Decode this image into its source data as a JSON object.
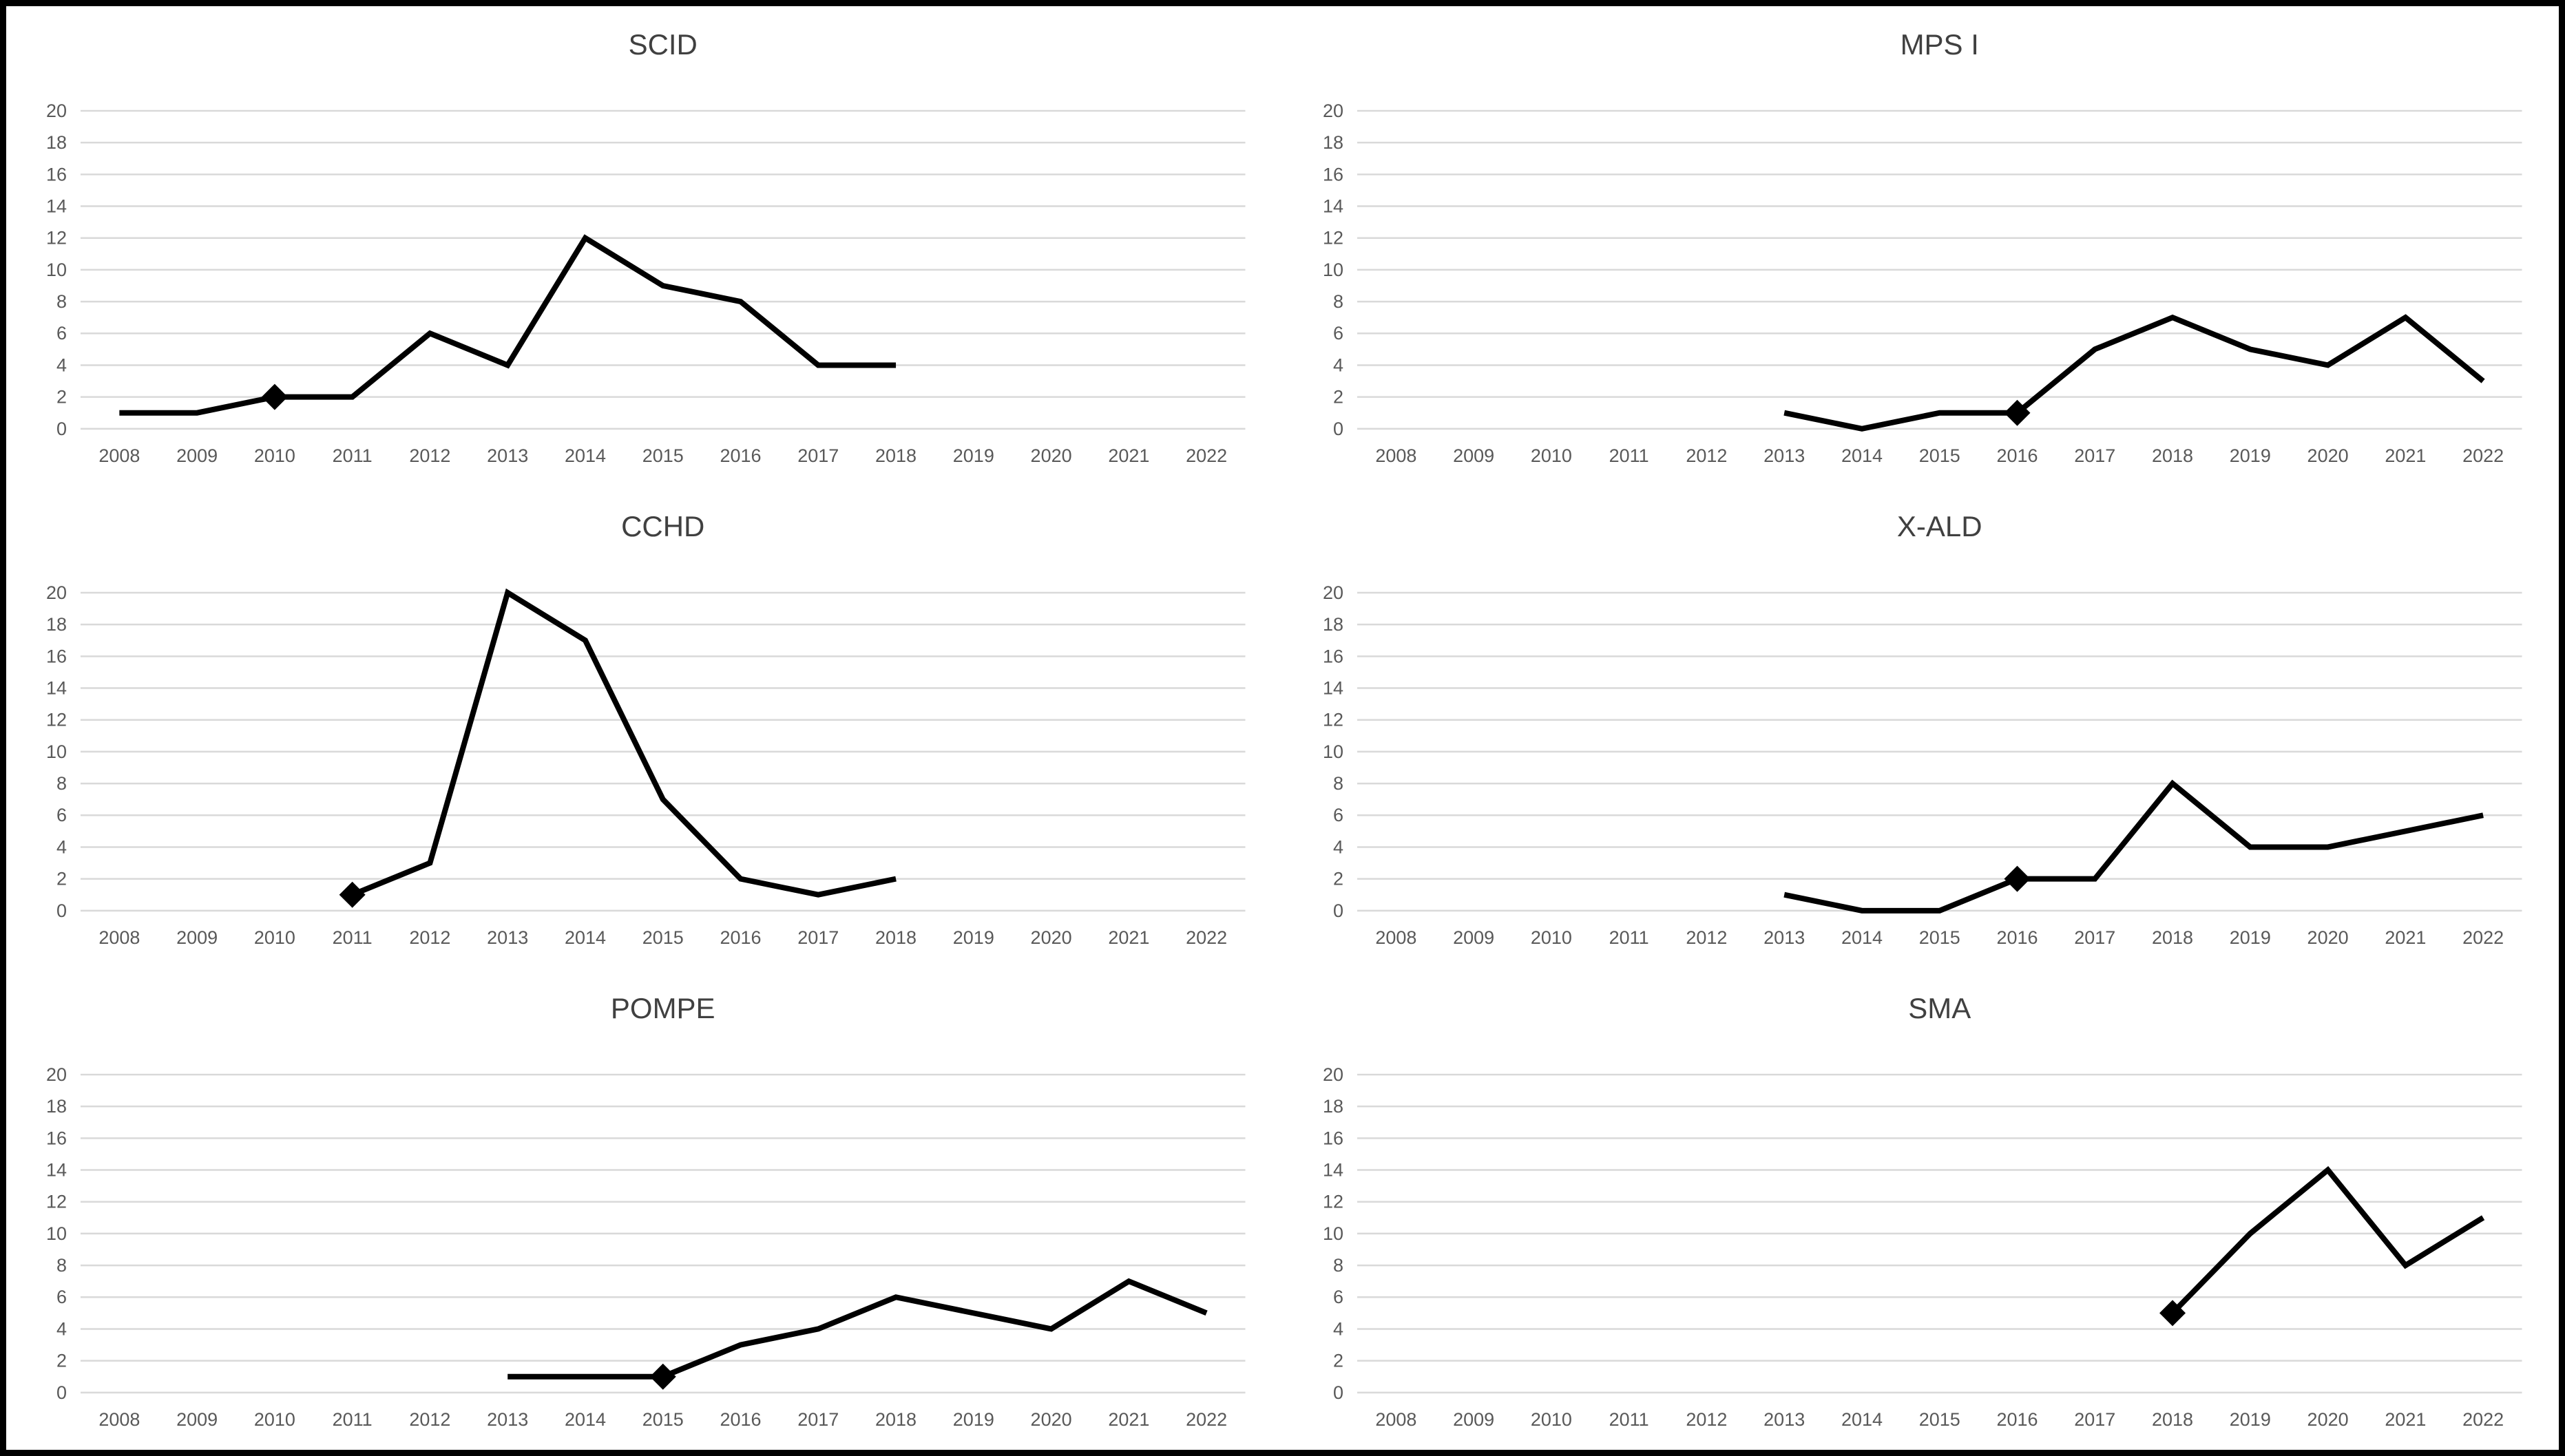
{
  "figure": {
    "layout": "2x3 grid of line charts",
    "colors": {
      "background": "#ffffff",
      "outer_border": "#000000",
      "title_text": "#404040",
      "axis_text": "#595959",
      "gridline": "#d9d9d9",
      "series_line": "#000000",
      "marker_fill": "#000000"
    }
  },
  "chart_data": [
    {
      "type": "line",
      "title": "SCID",
      "categories": [
        2008,
        2009,
        2010,
        2011,
        2012,
        2013,
        2014,
        2015,
        2016,
        2017,
        2018,
        2019,
        2020,
        2021,
        2022
      ],
      "values": [
        1,
        1,
        2,
        2,
        6,
        4,
        12,
        9,
        8,
        4,
        4,
        null,
        null,
        null,
        null
      ],
      "marker": {
        "category": 2010,
        "value": 2,
        "shape": "diamond"
      },
      "ylim": [
        0,
        20
      ],
      "ytick_step": 2,
      "grid": true,
      "legend": "none",
      "xlabel": "",
      "ylabel": ""
    },
    {
      "type": "line",
      "title": "MPS I",
      "categories": [
        2008,
        2009,
        2010,
        2011,
        2012,
        2013,
        2014,
        2015,
        2016,
        2017,
        2018,
        2019,
        2020,
        2021,
        2022
      ],
      "values": [
        null,
        null,
        null,
        null,
        null,
        1,
        0,
        1,
        1,
        5,
        7,
        5,
        4,
        7,
        3
      ],
      "marker": {
        "category": 2016,
        "value": 1,
        "shape": "diamond"
      },
      "ylim": [
        0,
        20
      ],
      "ytick_step": 2,
      "grid": true,
      "legend": "none",
      "xlabel": "",
      "ylabel": ""
    },
    {
      "type": "line",
      "title": "CCHD",
      "categories": [
        2008,
        2009,
        2010,
        2011,
        2012,
        2013,
        2014,
        2015,
        2016,
        2017,
        2018,
        2019,
        2020,
        2021,
        2022
      ],
      "values": [
        null,
        null,
        null,
        1,
        3,
        20,
        17,
        7,
        2,
        1,
        2,
        null,
        null,
        null,
        null
      ],
      "marker": {
        "category": 2011,
        "value": 1,
        "shape": "diamond"
      },
      "ylim": [
        0,
        20
      ],
      "ytick_step": 2,
      "grid": true,
      "legend": "none",
      "xlabel": "",
      "ylabel": ""
    },
    {
      "type": "line",
      "title": "X-ALD",
      "categories": [
        2008,
        2009,
        2010,
        2011,
        2012,
        2013,
        2014,
        2015,
        2016,
        2017,
        2018,
        2019,
        2020,
        2021,
        2022
      ],
      "values": [
        null,
        null,
        null,
        null,
        null,
        1,
        0,
        0,
        2,
        2,
        8,
        4,
        4,
        5,
        6
      ],
      "marker": {
        "category": 2016,
        "value": 2,
        "shape": "diamond"
      },
      "ylim": [
        0,
        20
      ],
      "ytick_step": 2,
      "grid": true,
      "legend": "none",
      "xlabel": "",
      "ylabel": ""
    },
    {
      "type": "line",
      "title": "POMPE",
      "categories": [
        2008,
        2009,
        2010,
        2011,
        2012,
        2013,
        2014,
        2015,
        2016,
        2017,
        2018,
        2019,
        2020,
        2021,
        2022
      ],
      "values": [
        null,
        null,
        null,
        null,
        null,
        1,
        1,
        1,
        3,
        4,
        6,
        5,
        4,
        7,
        5
      ],
      "marker": {
        "category": 2015,
        "value": 1,
        "shape": "diamond"
      },
      "ylim": [
        0,
        20
      ],
      "ytick_step": 2,
      "grid": true,
      "legend": "none",
      "xlabel": "",
      "ylabel": ""
    },
    {
      "type": "line",
      "title": "SMA",
      "categories": [
        2008,
        2009,
        2010,
        2011,
        2012,
        2013,
        2014,
        2015,
        2016,
        2017,
        2018,
        2019,
        2020,
        2021,
        2022
      ],
      "values": [
        null,
        null,
        null,
        null,
        null,
        null,
        null,
        null,
        null,
        null,
        5,
        10,
        14,
        8,
        11
      ],
      "marker": {
        "category": 2018,
        "value": 5,
        "shape": "diamond"
      },
      "ylim": [
        0,
        20
      ],
      "ytick_step": 2,
      "grid": true,
      "legend": "none",
      "xlabel": "",
      "ylabel": ""
    }
  ]
}
